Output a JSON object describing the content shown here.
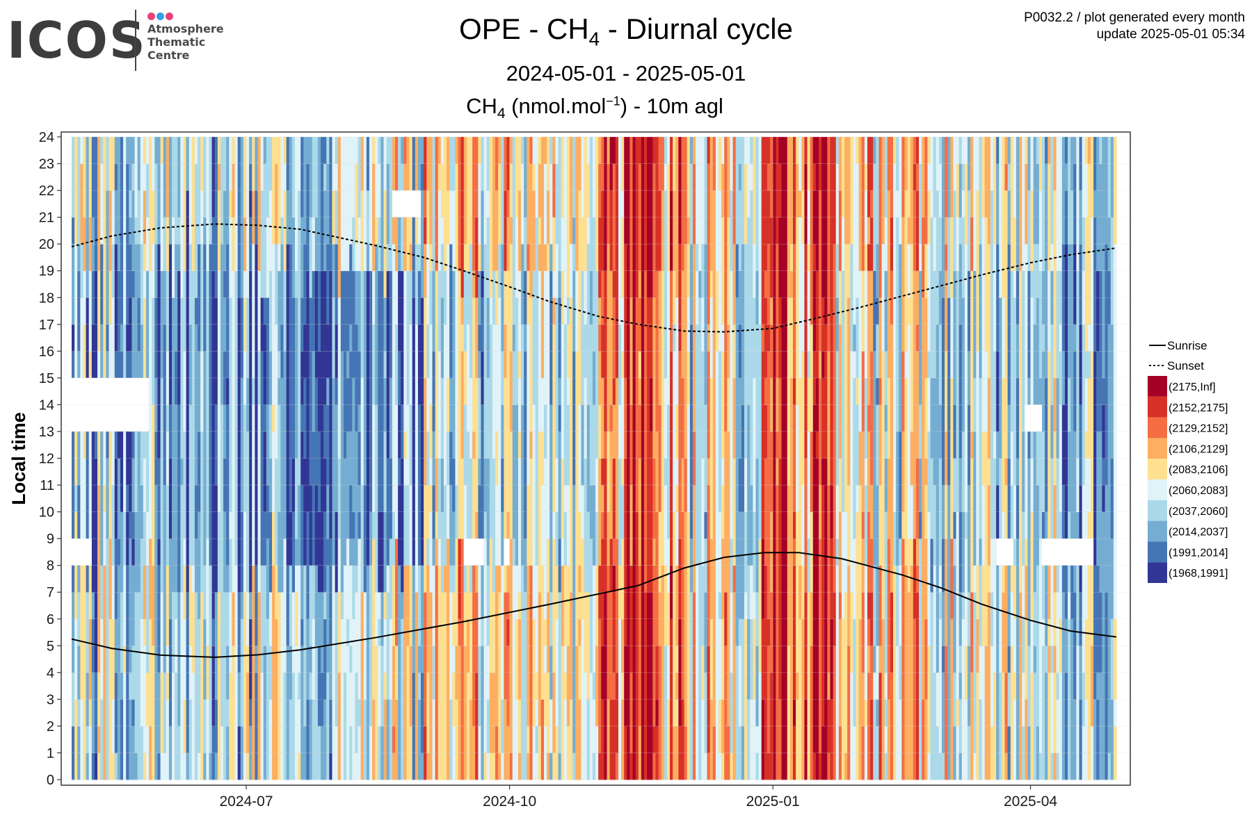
{
  "logo": {
    "wordmark": "ICOS",
    "lines": [
      "Atmosphere",
      "Thematic",
      "Centre"
    ],
    "dot_colors": [
      "#e8417a",
      "#2fa0e6",
      "#e8417a"
    ]
  },
  "header": {
    "title_pre": "OPE - CH",
    "title_sub": "4",
    "title_post": " - Diurnal cycle",
    "period": "2024-05-01 - 2025-05-01",
    "subtitle_pre": "CH",
    "subtitle_sub": "4",
    "subtitle_mid": " (nmol.mol",
    "subtitle_sup": "−1",
    "subtitle_post": ") - 10m agl",
    "product_line": "P0032.2 / plot generated every month",
    "update_line": "update  2025-05-01 05:34"
  },
  "chart_data": {
    "type": "heatmap",
    "title": "OPE - CH4 - Diurnal cycle",
    "subtitle": "CH4 (nmol.mol-1) - 10m agl",
    "ylabel": "Local time",
    "xlabel": "",
    "x_range": [
      "2024-05-01",
      "2025-05-01"
    ],
    "ylim": [
      0,
      24
    ],
    "y_ticks": [
      0,
      1,
      2,
      3,
      4,
      5,
      6,
      7,
      8,
      9,
      10,
      11,
      12,
      13,
      14,
      15,
      16,
      17,
      18,
      19,
      20,
      21,
      22,
      23,
      24
    ],
    "x_ticks": [
      {
        "date": "2024-07-01",
        "label": "2024-07"
      },
      {
        "date": "2024-10-01",
        "label": "2024-10"
      },
      {
        "date": "2025-01-01",
        "label": "2025-01"
      },
      {
        "date": "2025-04-01",
        "label": "2025-04"
      }
    ],
    "grid": true,
    "legend_position": "right",
    "lines": [
      {
        "name": "Sunrise",
        "style": "solid",
        "points": [
          [
            "2024-05-01",
            5.25
          ],
          [
            "2024-05-15",
            4.9
          ],
          [
            "2024-06-01",
            4.65
          ],
          [
            "2024-06-20",
            4.57
          ],
          [
            "2024-07-05",
            4.66
          ],
          [
            "2024-07-20",
            4.85
          ],
          [
            "2024-08-15",
            5.3
          ],
          [
            "2024-09-15",
            5.9
          ],
          [
            "2024-10-15",
            6.55
          ],
          [
            "2024-11-15",
            7.25
          ],
          [
            "2024-12-01",
            7.9
          ],
          [
            "2024-12-15",
            8.3
          ],
          [
            "2024-12-29",
            8.48
          ],
          [
            "2025-01-10",
            8.48
          ],
          [
            "2025-01-25",
            8.25
          ],
          [
            "2025-02-15",
            7.65
          ],
          [
            "2025-03-01",
            7.15
          ],
          [
            "2025-03-15",
            6.55
          ],
          [
            "2025-04-01",
            5.95
          ],
          [
            "2025-04-15",
            5.55
          ],
          [
            "2025-05-01",
            5.33
          ]
        ]
      },
      {
        "name": "Sunset",
        "style": "dotted",
        "points": [
          [
            "2024-05-01",
            19.9
          ],
          [
            "2024-05-15",
            20.3
          ],
          [
            "2024-06-01",
            20.6
          ],
          [
            "2024-06-20",
            20.75
          ],
          [
            "2024-07-05",
            20.7
          ],
          [
            "2024-07-20",
            20.55
          ],
          [
            "2024-08-15",
            19.95
          ],
          [
            "2024-09-01",
            19.5
          ],
          [
            "2024-09-15",
            19.0
          ],
          [
            "2024-10-01",
            18.4
          ],
          [
            "2024-10-15",
            17.85
          ],
          [
            "2024-11-01",
            17.3
          ],
          [
            "2024-11-15",
            17.0
          ],
          [
            "2024-12-01",
            16.75
          ],
          [
            "2024-12-15",
            16.72
          ],
          [
            "2025-01-01",
            16.85
          ],
          [
            "2025-01-15",
            17.2
          ],
          [
            "2025-02-01",
            17.65
          ],
          [
            "2025-02-15",
            18.05
          ],
          [
            "2025-03-01",
            18.45
          ],
          [
            "2025-03-15",
            18.85
          ],
          [
            "2025-04-01",
            19.3
          ],
          [
            "2025-04-15",
            19.6
          ],
          [
            "2025-05-01",
            19.85
          ]
        ]
      }
    ],
    "color_bins": [
      {
        "label": "(2175,Inf]",
        "color": "#a50026"
      },
      {
        "label": "(2152,2175]",
        "color": "#d73027"
      },
      {
        "label": "(2129,2152]",
        "color": "#f46d43"
      },
      {
        "label": "(2106,2129]",
        "color": "#fdae61"
      },
      {
        "label": "(2083,2106]",
        "color": "#fee090"
      },
      {
        "label": "(2060,2083]",
        "color": "#e0f3f8"
      },
      {
        "label": "(2037,2060]",
        "color": "#abd9e9"
      },
      {
        "label": "(2014,2037]",
        "color": "#74add1"
      },
      {
        "label": "(1991,2014]",
        "color": "#4575b4"
      },
      {
        "label": "(1968,1991]",
        "color": "#313695"
      }
    ],
    "monthly_bin_level": [
      {
        "month": "2024-05",
        "night": 5.6,
        "day": 6.6
      },
      {
        "month": "2024-06",
        "night": 6.0,
        "day": 7.3
      },
      {
        "month": "2024-07",
        "night": 5.6,
        "day": 7.4
      },
      {
        "month": "2024-08",
        "night": 5.0,
        "day": 7.2
      },
      {
        "month": "2024-09",
        "night": 4.2,
        "day": 6.0
      },
      {
        "month": "2024-10",
        "night": 4.6,
        "day": 5.8
      },
      {
        "month": "2024-11",
        "night": 2.6,
        "day": 3.6
      },
      {
        "month": "2024-12",
        "night": 4.2,
        "day": 4.9
      },
      {
        "month": "2025-01",
        "night": 2.9,
        "day": 3.6
      },
      {
        "month": "2025-02",
        "night": 3.7,
        "day": 4.7
      },
      {
        "month": "2025-03",
        "night": 4.9,
        "day": 5.8
      },
      {
        "month": "2025-04",
        "night": 5.6,
        "day": 6.3
      }
    ],
    "high_episodes": [
      {
        "start": "2024-11-10",
        "end": "2024-11-20",
        "bin_shift": -3
      },
      {
        "start": "2024-12-28",
        "end": "2025-01-05",
        "bin_shift": -3
      },
      {
        "start": "2025-01-15",
        "end": "2025-01-22",
        "bin_shift": -3
      }
    ],
    "missing_data": [
      {
        "start": "2024-05-01",
        "end": "2024-05-28",
        "y0": 13,
        "y1": 15
      },
      {
        "start": "2024-05-01",
        "end": "2024-05-08",
        "y0": 8,
        "y1": 9
      },
      {
        "start": "2024-08-21",
        "end": "2024-08-31",
        "y0": 21,
        "y1": 22
      },
      {
        "start": "2024-09-15",
        "end": "2024-09-22",
        "y0": 8,
        "y1": 9
      },
      {
        "start": "2024-09-29",
        "end": "2024-10-01",
        "y0": 8,
        "y1": 9
      },
      {
        "start": "2025-03-20",
        "end": "2025-03-26",
        "y0": 8,
        "y1": 9
      },
      {
        "start": "2025-03-30",
        "end": "2025-04-05",
        "y0": 13,
        "y1": 14
      },
      {
        "start": "2025-04-05",
        "end": "2025-04-23",
        "y0": 8,
        "y1": 9
      }
    ]
  }
}
